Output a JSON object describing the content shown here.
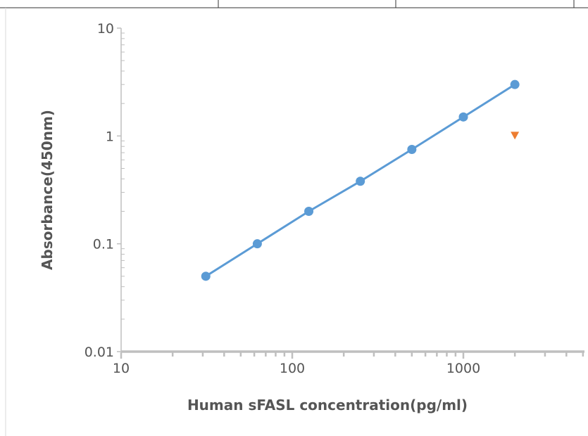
{
  "chart_data": {
    "type": "scatter",
    "xlabel": "Human sFASL concentration(pg/ml)",
    "ylabel": "Absorbance(450nm)",
    "x_scale": "log",
    "y_scale": "log",
    "xlim": [
      10,
      5000
    ],
    "ylim": [
      0.01,
      10
    ],
    "x_ticks": [
      10,
      100,
      1000
    ],
    "x_tick_labels": [
      "10",
      "100",
      "1000"
    ],
    "y_ticks": [
      0.01,
      0.1,
      1,
      10
    ],
    "y_tick_labels": [
      "0.01",
      "0.1",
      "1",
      "10"
    ],
    "grid": false,
    "legend": "none",
    "series": [
      {
        "marker": "circle",
        "line": true,
        "color": "#5b9bd5",
        "points": [
          {
            "x": 31.25,
            "y": 0.05
          },
          {
            "x": 62.5,
            "y": 0.1
          },
          {
            "x": 125,
            "y": 0.2
          },
          {
            "x": 250,
            "y": 0.38
          },
          {
            "x": 500,
            "y": 0.75
          },
          {
            "x": 1000,
            "y": 1.5
          },
          {
            "x": 2000,
            "y": 3.0
          }
        ]
      },
      {
        "marker": "triangle-down",
        "line": false,
        "color": "#ed7d31",
        "points": [
          {
            "x": 2000,
            "y": 1.0
          }
        ]
      }
    ]
  }
}
